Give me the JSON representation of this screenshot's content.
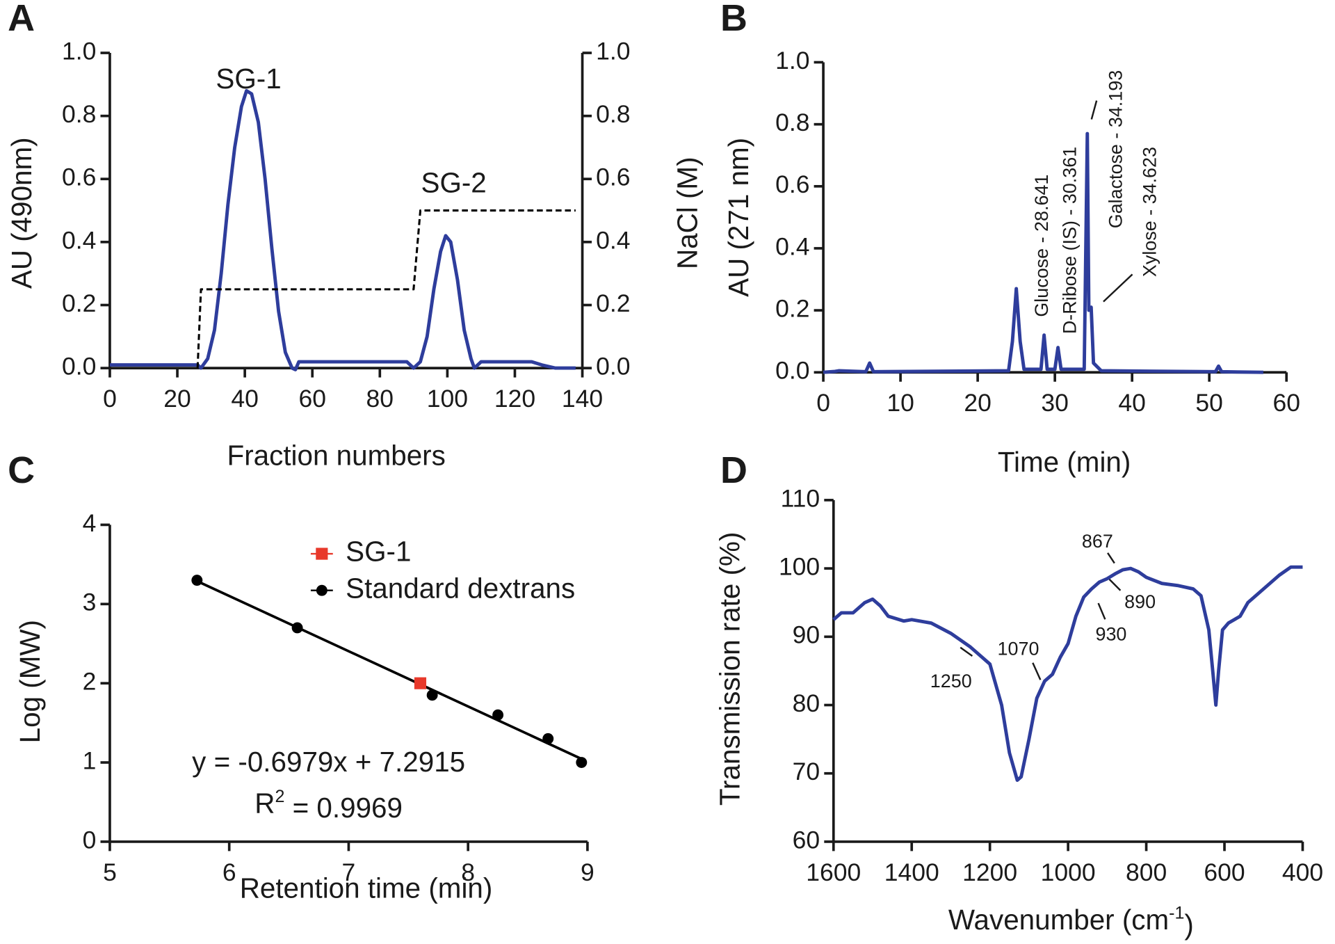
{
  "chart_data": [
    {
      "type": "line",
      "panel_label": "A",
      "x_label": "Fraction numbers",
      "y_label": "AU  (490nm)",
      "y2_label": "NaCl (M)",
      "annotations": [
        "SG-1",
        "SG-2"
      ],
      "xlim": [
        0,
        140
      ],
      "xticks": [
        0,
        20,
        40,
        60,
        80,
        100,
        120,
        140
      ],
      "ylim": [
        0,
        1
      ],
      "yticks": [
        {
          "value": 0,
          "label": "0.0"
        },
        0.2,
        0.4,
        0.6,
        0.8,
        {
          "value": 1,
          "label": "1.0"
        }
      ],
      "y2lim": [
        0,
        1
      ],
      "y2ticks": [
        {
          "value": 0,
          "label": "0.0"
        },
        0.2,
        0.4,
        0.6,
        0.8,
        {
          "value": 1,
          "label": "1.0"
        }
      ],
      "series": [
        {
          "color": "#2e3d9c",
          "style": "solid",
          "x": [
            0,
            20,
            26,
            27,
            29,
            31,
            33,
            35,
            37,
            39,
            40.5,
            42,
            44,
            46,
            48,
            50,
            52,
            54,
            55,
            56,
            70,
            88,
            90,
            92,
            94,
            96,
            98,
            99.5,
            101,
            103,
            105,
            107,
            108,
            110,
            125,
            128,
            132,
            138
          ],
          "values": [
            0.01,
            0.01,
            0.01,
            0,
            0.03,
            0.12,
            0.3,
            0.52,
            0.7,
            0.83,
            0.88,
            0.87,
            0.78,
            0.6,
            0.38,
            0.18,
            0.05,
            0,
            -0.005,
            0.02,
            0.02,
            0.02,
            0,
            0.02,
            0.1,
            0.25,
            0.37,
            0.42,
            0.4,
            0.28,
            0.12,
            0.03,
            0,
            0.02,
            0.02,
            0.01,
            0,
            0
          ]
        },
        {
          "color": "#000000",
          "style": "dashed",
          "axis": "y2",
          "x": [
            26,
            27,
            90,
            92,
            138
          ],
          "values": [
            0,
            0.25,
            0.25,
            0.5,
            0.5
          ]
        }
      ]
    },
    {
      "type": "line",
      "panel_label": "B",
      "x_label": "Time (min)",
      "y_label": "AU (271 nm)",
      "annotations": [
        "Glucose - 28.641",
        "D-Ribose (IS) - 30.361",
        "Galactose - 34.193",
        "Xylose - 34.623"
      ],
      "xlim": [
        0,
        60
      ],
      "xticks": [
        0,
        10,
        20,
        30,
        40,
        50,
        60
      ],
      "ylim": [
        0,
        1
      ],
      "yticks": [
        {
          "value": 0,
          "label": "0.0"
        },
        0.2,
        0.4,
        0.6,
        0.8,
        {
          "value": 1,
          "label": "1.0"
        }
      ],
      "series": [
        {
          "color": "#2e3d9c",
          "style": "solid",
          "x": [
            0,
            1.5,
            2,
            5.5,
            6,
            6.5,
            24,
            24.5,
            25,
            25.5,
            26,
            28.2,
            28.6,
            29,
            30,
            30.4,
            30.8,
            33.8,
            34.2,
            34.4,
            34.7,
            35,
            36,
            50.8,
            51.2,
            51.6,
            57
          ],
          "values": [
            0,
            0.003,
            0.005,
            0.002,
            0.03,
            0.002,
            0.005,
            0.1,
            0.27,
            0.1,
            0.01,
            0.01,
            0.12,
            0.01,
            0.01,
            0.08,
            0.01,
            0.01,
            0.77,
            0.2,
            0.21,
            0.03,
            0.005,
            0.002,
            0.02,
            0.002,
            0
          ]
        }
      ]
    },
    {
      "type": "scatter",
      "panel_label": "C",
      "x_label": "Retention time (min)",
      "y_label": "Log (MW)",
      "equation": "y = -0.6979x + 7.2915",
      "r_squared": [
        "R",
        "2",
        " = 0.9969"
      ],
      "xlim": [
        5,
        9
      ],
      "xticks": [
        5,
        6,
        7,
        8,
        9
      ],
      "ylim": [
        0,
        4
      ],
      "yticks": [
        0,
        1,
        2,
        3,
        4
      ],
      "fit_line": {
        "color": "#000000",
        "x": [
          5.73,
          8.95
        ],
        "values": [
          3.29,
          1.045
        ]
      },
      "series": [
        {
          "name": "SG-1",
          "color": "#e8392b",
          "marker": "square",
          "x": [
            7.6
          ],
          "values": [
            2.0
          ]
        },
        {
          "name": "Standard dextrans",
          "color": "#000000",
          "marker": "circle",
          "x": [
            5.73,
            6.57,
            7.7,
            8.25,
            8.67,
            8.95
          ],
          "values": [
            3.3,
            2.7,
            1.85,
            1.6,
            1.3,
            1.0
          ]
        }
      ]
    },
    {
      "type": "line",
      "panel_label": "D",
      "x_label": [
        "Wavenumber (cm",
        "-1",
        ")"
      ],
      "y_label": "Transmission rate (%)",
      "annotations": [
        "1250",
        "1070",
        "930",
        "890",
        "867"
      ],
      "xlim": [
        1600,
        400
      ],
      "xticks": [
        1600,
        1400,
        1200,
        1000,
        800,
        600,
        400
      ],
      "ylim": [
        60,
        110
      ],
      "yticks": [
        60,
        70,
        80,
        90,
        100,
        110
      ],
      "series": [
        {
          "color": "#2e3d9c",
          "style": "solid",
          "x": [
            1600,
            1580,
            1550,
            1520,
            1500,
            1480,
            1460,
            1420,
            1400,
            1350,
            1300,
            1250,
            1200,
            1170,
            1150,
            1130,
            1120,
            1100,
            1080,
            1060,
            1040,
            1020,
            1000,
            980,
            960,
            940,
            920,
            900,
            880,
            860,
            840,
            820,
            800,
            760,
            720,
            680,
            660,
            640,
            630,
            622,
            615,
            605,
            590,
            560,
            540,
            500,
            460,
            430,
            400
          ],
          "values": [
            92.5,
            93.5,
            93.5,
            95,
            95.5,
            94.5,
            93,
            92.3,
            92.5,
            92,
            90.5,
            88.5,
            86,
            80,
            73,
            69,
            69.5,
            75,
            81,
            83.5,
            84.5,
            87,
            89,
            93,
            95.8,
            97,
            98,
            98.5,
            99.2,
            99.8,
            100,
            99.5,
            98.7,
            97.8,
            97.5,
            97,
            96,
            91,
            85,
            80,
            85,
            91,
            92,
            93,
            95,
            97,
            99,
            100.2,
            100.2
          ]
        }
      ]
    }
  ]
}
